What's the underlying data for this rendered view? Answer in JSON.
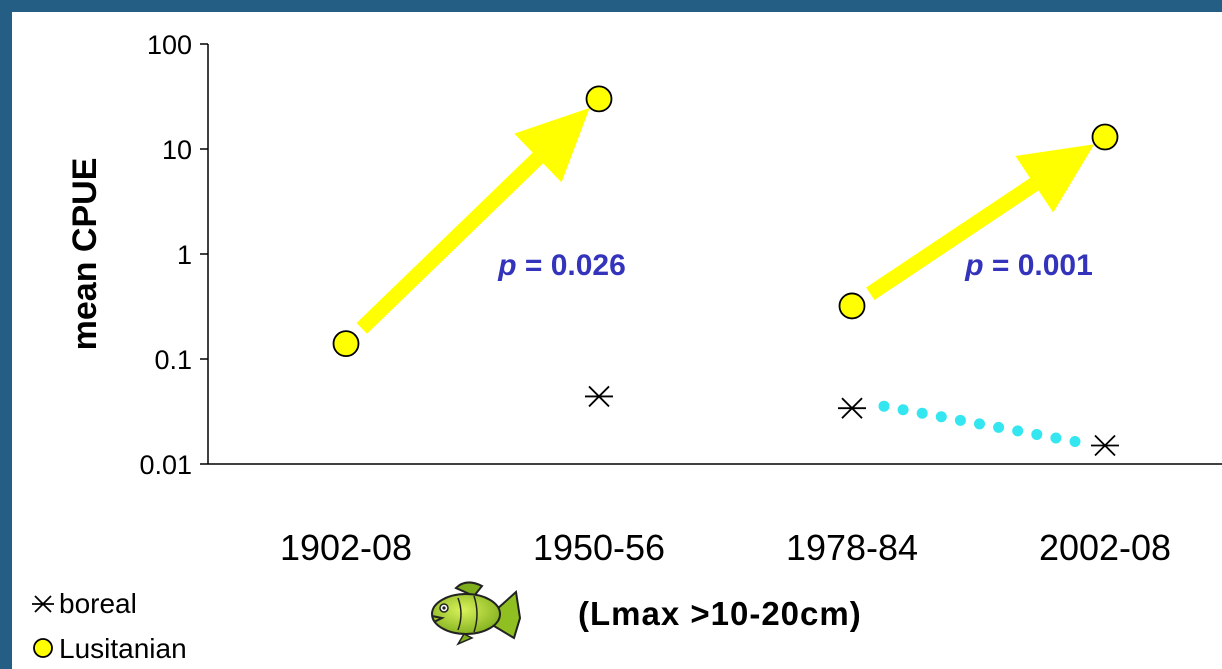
{
  "chart_data": {
    "type": "scatter",
    "y_scale": "log",
    "ylim": [
      0.01,
      100
    ],
    "ylabel": "mean CPUE",
    "y_ticks": [
      "100",
      "10",
      "1",
      "0.1",
      "0.01"
    ],
    "categories": [
      "1902-08",
      "1950-56",
      "1978-84",
      "2002-08"
    ],
    "series": [
      {
        "name": "boreal",
        "marker": "asterisk",
        "color": "#000000",
        "values": [
          null,
          0.044,
          0.034,
          0.015
        ]
      },
      {
        "name": "Lusitanian",
        "marker": "circle",
        "color": "#ffff00",
        "values": [
          0.14,
          30,
          0.32,
          13
        ]
      }
    ],
    "trend_arrows": [
      {
        "series": "Lusitanian",
        "from": "1902-08",
        "to": "1950-56",
        "color": "#ffff00"
      },
      {
        "series": "Lusitanian",
        "from": "1978-84",
        "to": "2002-08",
        "color": "#ffff00"
      }
    ],
    "trend_lines": [
      {
        "series": "boreal",
        "from": "1978-84",
        "to": "2002-08",
        "style": "dotted",
        "color": "#33e6f0"
      }
    ],
    "annotations": [
      {
        "p_label": "p",
        "rest": " = 0.026",
        "color": "#3333bb"
      },
      {
        "p_label": "p",
        "rest": " = 0.001",
        "color": "#3333bb"
      }
    ],
    "subtitle": "(Lmax >10-20cm)",
    "legend": {
      "placement": "bottom-left",
      "items": [
        {
          "label": "boreal",
          "marker": "asterisk"
        },
        {
          "label": "Lusitanian",
          "marker": "circle"
        }
      ]
    },
    "grid": false
  },
  "decoration": {
    "icon": "fish-icon",
    "fish_color": "#a6d32a"
  },
  "colors": {
    "frame": "#255e84",
    "background": "#ffffff"
  }
}
